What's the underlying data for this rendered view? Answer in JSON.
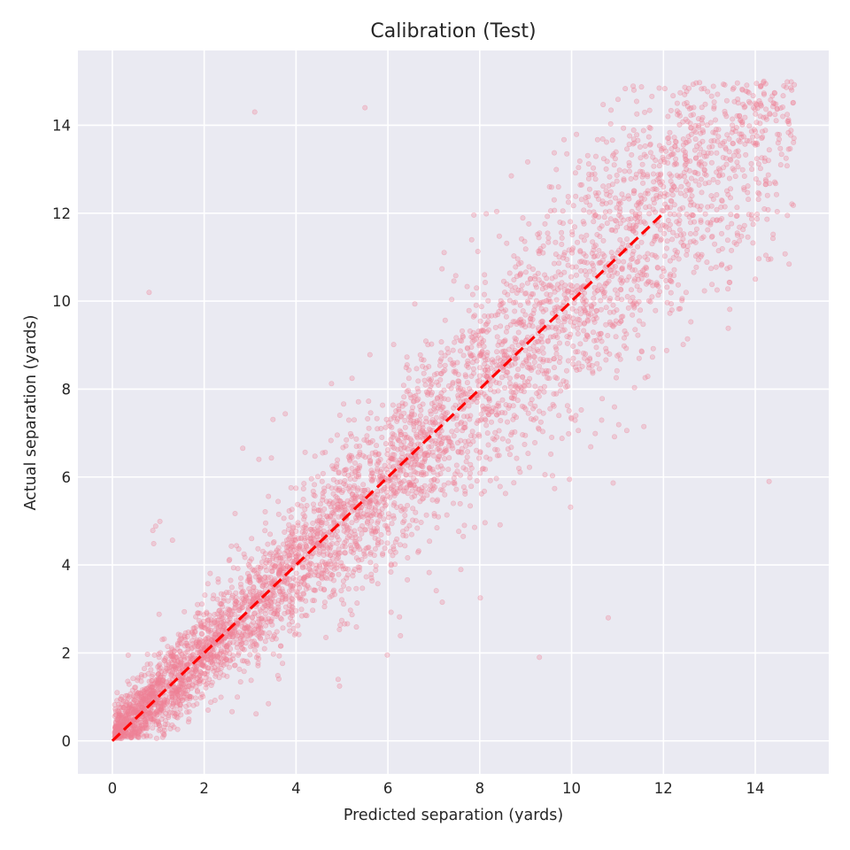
{
  "chart_data": {
    "type": "scatter",
    "title": "Calibration (Test)",
    "xlabel": "Predicted separation (yards)",
    "ylabel": "Actual separation (yards)",
    "xlim": [
      -0.75,
      15.6
    ],
    "ylim": [
      -0.75,
      15.7
    ],
    "xticks": [
      0,
      2,
      4,
      6,
      8,
      10,
      12,
      14
    ],
    "yticks": [
      0,
      2,
      4,
      6,
      8,
      10,
      12,
      14
    ],
    "xtick_labels": [
      "0",
      "2",
      "4",
      "6",
      "8",
      "10",
      "12",
      "14"
    ],
    "ytick_labels": [
      "0",
      "2",
      "4",
      "6",
      "8",
      "10",
      "12",
      "14"
    ],
    "grid": true,
    "point_color": "#f08096",
    "background_color": "#eaeaf2",
    "grid_color": "#ffffff",
    "reference_line": {
      "x": [
        0,
        12
      ],
      "y": [
        0,
        12
      ],
      "color": "#ff0000",
      "style": "dashed"
    },
    "series": [
      {
        "points_sampled": [
          [
            0.3,
            0.5
          ],
          [
            0.8,
            1.0
          ],
          [
            1.2,
            0.9
          ],
          [
            1.5,
            1.8
          ],
          [
            2.0,
            2.2
          ],
          [
            2.5,
            2.4
          ],
          [
            3.0,
            3.1
          ],
          [
            3.5,
            3.3
          ],
          [
            4.0,
            4.2
          ],
          [
            4.5,
            4.4
          ],
          [
            5.0,
            5.1
          ],
          [
            5.5,
            5.7
          ],
          [
            6.0,
            6.1
          ],
          [
            6.5,
            6.3
          ],
          [
            7.0,
            7.2
          ],
          [
            7.5,
            7.4
          ],
          [
            8.0,
            8.3
          ],
          [
            8.5,
            8.6
          ],
          [
            9.0,
            9.1
          ],
          [
            9.5,
            9.4
          ],
          [
            10.0,
            10.2
          ],
          [
            10.5,
            10.6
          ],
          [
            11.0,
            11.1
          ],
          [
            11.5,
            11.8
          ],
          [
            12.0,
            12.6
          ],
          [
            12.5,
            13.0
          ],
          [
            13.0,
            13.5
          ],
          [
            13.5,
            14.0
          ],
          [
            14.0,
            14.5
          ],
          [
            14.6,
            14.2
          ],
          [
            0.8,
            10.2
          ],
          [
            3.1,
            14.3
          ],
          [
            14.3,
            5.9
          ],
          [
            9.3,
            1.9
          ],
          [
            10.8,
            2.8
          ],
          [
            5.5,
            14.4
          ]
        ]
      }
    ]
  }
}
